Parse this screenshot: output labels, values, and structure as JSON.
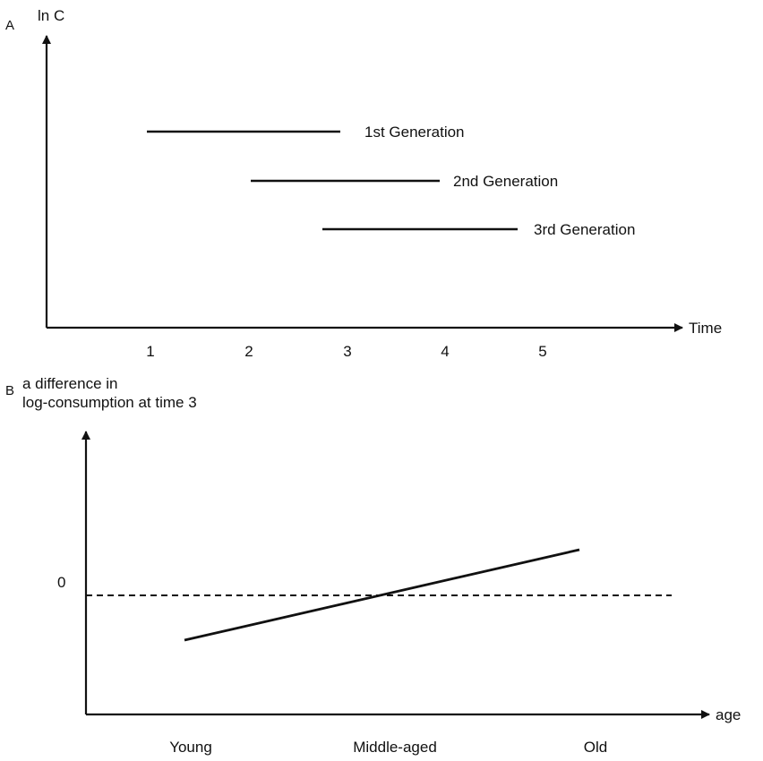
{
  "panel_a": {
    "letter": "A",
    "y_axis_label": "ln C",
    "x_axis_label": "Time",
    "x_ticks": [
      "1",
      "2",
      "3",
      "4",
      "5"
    ],
    "generations": [
      {
        "label": "1st Generation",
        "start": 1,
        "end": 3
      },
      {
        "label": "2nd Generation",
        "start": 2,
        "end": 4
      },
      {
        "label": "3rd Generation",
        "start": 2.75,
        "end": 4.75
      }
    ]
  },
  "panel_b": {
    "letter": "B",
    "y_axis_label_line1": "a difference in",
    "y_axis_label_line2": "log-consumption at time 3",
    "zero_label": "0",
    "x_axis_label": "age",
    "x_categories": [
      "Young",
      "Middle-aged",
      "Old"
    ]
  }
}
